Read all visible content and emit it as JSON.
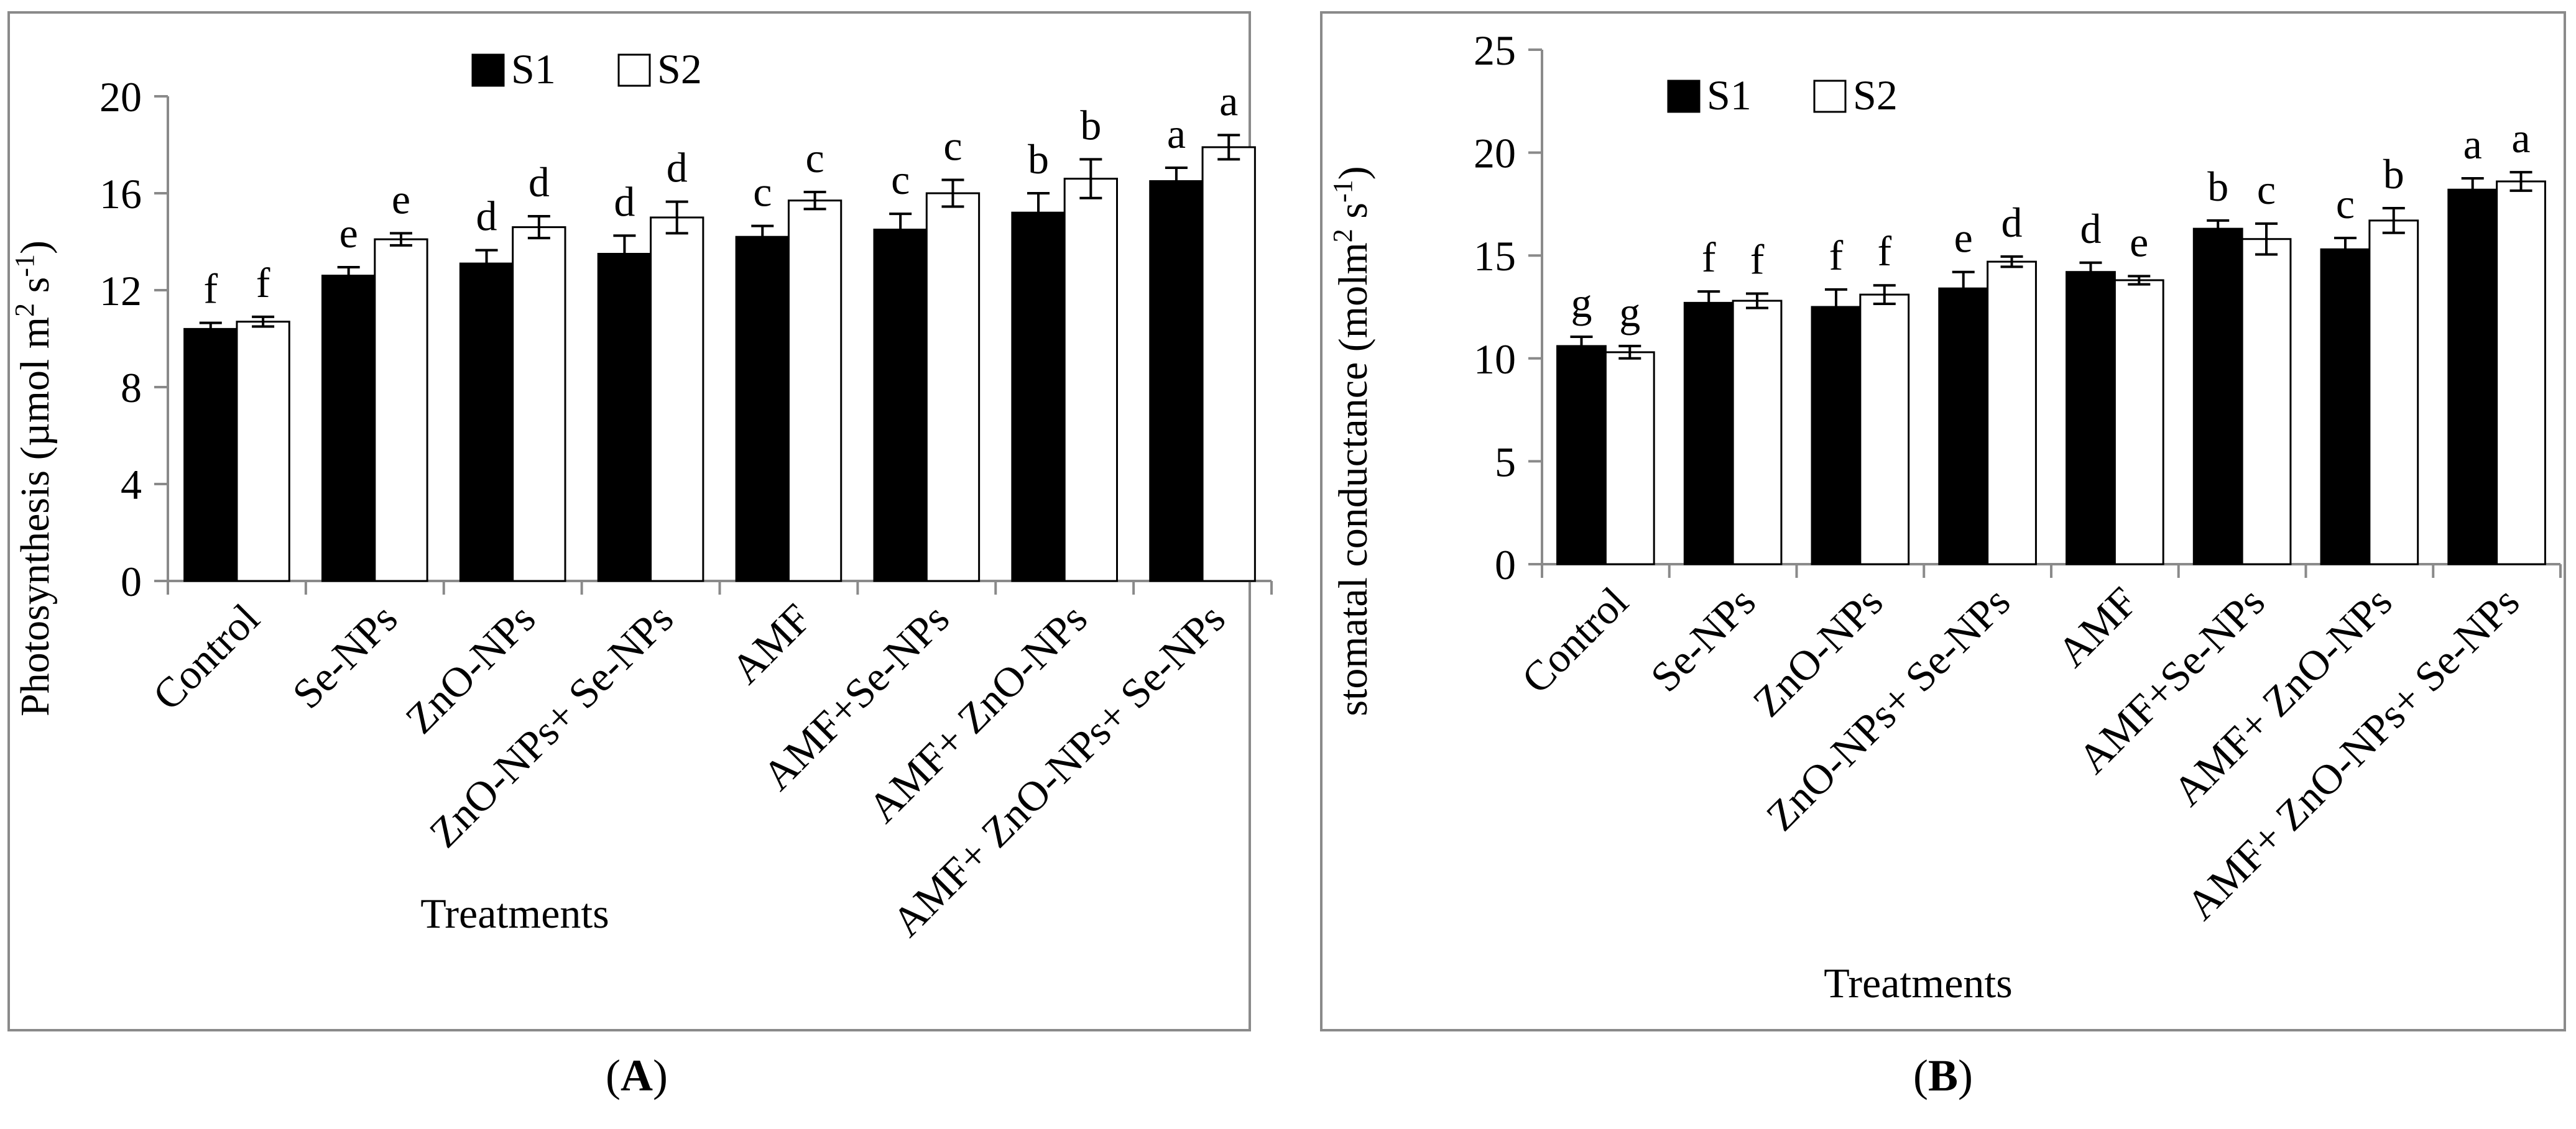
{
  "colors": {
    "s1_fill": "#000000",
    "s2_fill": "#ffffff",
    "axis": "#8a8a8a",
    "frame": "#8a8a8a",
    "text": "#000000"
  },
  "chart_data": [
    {
      "type": "bar",
      "panel_label": "A",
      "ylabel": "Photosynthesis (µmol m2 s-1)",
      "ylabel_parts": {
        "pre": "Photosynthesis (µmol m",
        "sup1": "2",
        "mid": " s",
        "sup2": "-1",
        "post": ")"
      },
      "xlabel": "Treatments",
      "ylim": [
        0,
        20
      ],
      "yticks": [
        0,
        4,
        8,
        12,
        16,
        20
      ],
      "legend": [
        "S1",
        "S2"
      ],
      "legend_position": "top-center",
      "categories": [
        "Control",
        "Se-NPs",
        "ZnO-NPs",
        "ZnO-NPs+ Se-NPs",
        "AMF",
        "AMF+Se-NPs",
        "AMF+ ZnO-NPs",
        "AMF+ ZnO-NPs+ Se-NPs"
      ],
      "series": [
        {
          "name": "S1",
          "values": [
            10.4,
            12.6,
            13.1,
            13.5,
            14.2,
            14.5,
            15.2,
            16.5
          ],
          "errors": [
            0.25,
            0.35,
            0.55,
            0.75,
            0.45,
            0.65,
            0.8,
            0.55
          ],
          "letters": [
            "f",
            "e",
            "d",
            "d",
            "c",
            "c",
            "b",
            "a"
          ]
        },
        {
          "name": "S2",
          "values": [
            10.7,
            14.1,
            14.6,
            15.0,
            15.7,
            16.0,
            16.6,
            17.9
          ],
          "errors": [
            0.2,
            0.25,
            0.45,
            0.65,
            0.35,
            0.55,
            0.8,
            0.5
          ],
          "letters": [
            "f",
            "e",
            "d",
            "d",
            "c",
            "c",
            "b",
            "a"
          ]
        }
      ]
    },
    {
      "type": "bar",
      "panel_label": "B",
      "ylabel": "stomatal conductance (molm2 s-1)",
      "ylabel_parts": {
        "pre": "stomatal conductance (molm",
        "sup1": "2",
        "mid": " s",
        "sup2": "-1",
        "post": ")"
      },
      "xlabel": "Treatments",
      "ylim": [
        0,
        25
      ],
      "yticks": [
        0,
        5,
        10,
        15,
        20,
        25
      ],
      "legend": [
        "S1",
        "S2"
      ],
      "legend_position": "top-left",
      "categories": [
        "Control",
        "Se-NPs",
        "ZnO-NPs",
        "ZnO-NPs+ Se-NPs",
        "AMF",
        "AMF+Se-NPs",
        "AMF+ ZnO-NPs",
        "AMF+ ZnO-NPs+ Se-NPs"
      ],
      "series": [
        {
          "name": "S1",
          "values": [
            10.6,
            12.7,
            12.5,
            13.4,
            14.2,
            16.3,
            15.3,
            18.2
          ],
          "errors": [
            0.45,
            0.55,
            0.85,
            0.8,
            0.45,
            0.4,
            0.55,
            0.55
          ],
          "letters": [
            "g",
            "f",
            "f",
            "e",
            "d",
            "b",
            "c",
            "a"
          ]
        },
        {
          "name": "S2",
          "values": [
            10.3,
            12.8,
            13.1,
            14.7,
            13.8,
            15.8,
            16.7,
            18.6
          ],
          "errors": [
            0.3,
            0.35,
            0.45,
            0.25,
            0.2,
            0.75,
            0.6,
            0.45
          ],
          "letters": [
            "g",
            "f",
            "f",
            "d",
            "e",
            "c",
            "b",
            "a"
          ]
        }
      ]
    }
  ]
}
